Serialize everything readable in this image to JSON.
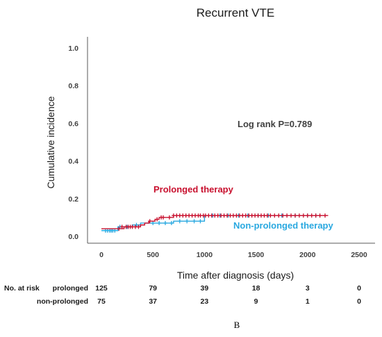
{
  "chart_data": {
    "type": "line",
    "title": "Recurrent VTE",
    "xlabel": "Time after diagnosis (days)",
    "ylabel": "Cumulative incidence",
    "xlim": [
      0,
      2500
    ],
    "ylim": [
      0,
      1.0
    ],
    "x_ticks": [
      "0",
      "500",
      "1000",
      "1500",
      "2000",
      "2500"
    ],
    "y_ticks": [
      "0.0",
      "0.2",
      "0.4",
      "0.6",
      "0.8",
      "1.0"
    ],
    "grid": false,
    "annotation": "Log rank P=0.789",
    "series": [
      {
        "name": "Prolonged therapy",
        "color": "#c8102e",
        "step_x": [
          0,
          150,
          220,
          310,
          380,
          420,
          460,
          520,
          560,
          640,
          700,
          2200
        ],
        "step_y": [
          0.04,
          0.04,
          0.05,
          0.05,
          0.06,
          0.07,
          0.08,
          0.09,
          0.1,
          0.1,
          0.11,
          0.11
        ],
        "censor_x": [
          170,
          200,
          240,
          260,
          280,
          300,
          330,
          360,
          470,
          540,
          580,
          600,
          660,
          700,
          730,
          760,
          790,
          820,
          850,
          880,
          910,
          940,
          960,
          990,
          1010,
          1040,
          1070,
          1100,
          1130,
          1160,
          1190,
          1220,
          1250,
          1280,
          1310,
          1340,
          1370,
          1400,
          1430,
          1460,
          1490,
          1520,
          1550,
          1580,
          1610,
          1640,
          1680,
          1720,
          1760,
          1800,
          1840,
          1880,
          1920,
          1960,
          2000,
          2040,
          2080,
          2120,
          2170
        ],
        "censor_y": [
          0.04,
          0.05,
          0.05,
          0.05,
          0.05,
          0.05,
          0.05,
          0.05,
          0.08,
          0.09,
          0.1,
          0.1,
          0.1,
          0.11,
          0.11,
          0.11,
          0.11,
          0.11,
          0.11,
          0.11,
          0.11,
          0.11,
          0.11,
          0.11,
          0.11,
          0.11,
          0.11,
          0.11,
          0.11,
          0.11,
          0.11,
          0.11,
          0.11,
          0.11,
          0.11,
          0.11,
          0.11,
          0.11,
          0.11,
          0.11,
          0.11,
          0.11,
          0.11,
          0.11,
          0.11,
          0.11,
          0.11,
          0.11,
          0.11,
          0.11,
          0.11,
          0.11,
          0.11,
          0.11,
          0.11,
          0.11,
          0.11,
          0.11,
          0.11
        ]
      },
      {
        "name": "Non-prolonged therapy",
        "color": "#29a8e0",
        "step_x": [
          0,
          100,
          160,
          300,
          380,
          700,
          1000,
          2100
        ],
        "step_y": [
          0.03,
          0.03,
          0.05,
          0.06,
          0.07,
          0.08,
          0.11,
          0.11
        ],
        "censor_x": [
          40,
          60,
          80,
          95,
          110,
          130,
          180,
          250,
          340,
          500,
          560,
          620,
          680,
          760,
          830,
          900,
          960,
          1080,
          1150,
          1230,
          1330,
          1420,
          1520,
          1620,
          1750,
          1880,
          2000,
          2080
        ],
        "censor_y": [
          0.03,
          0.03,
          0.03,
          0.03,
          0.03,
          0.03,
          0.05,
          0.05,
          0.06,
          0.07,
          0.07,
          0.07,
          0.07,
          0.08,
          0.08,
          0.08,
          0.08,
          0.11,
          0.11,
          0.11,
          0.11,
          0.11,
          0.11,
          0.11,
          0.11,
          0.11,
          0.11,
          0.11
        ]
      }
    ],
    "number_at_risk": {
      "header": "No. at risk",
      "x": [
        0,
        500,
        1000,
        1500,
        2000,
        2500
      ],
      "rows": [
        {
          "label": "prolonged",
          "values": [
            "125",
            "79",
            "39",
            "18",
            "3",
            "0"
          ]
        },
        {
          "label": "non-prolonged",
          "values": [
            "75",
            "37",
            "23",
            "9",
            "1",
            "0"
          ]
        }
      ]
    }
  },
  "panel_label": "B"
}
